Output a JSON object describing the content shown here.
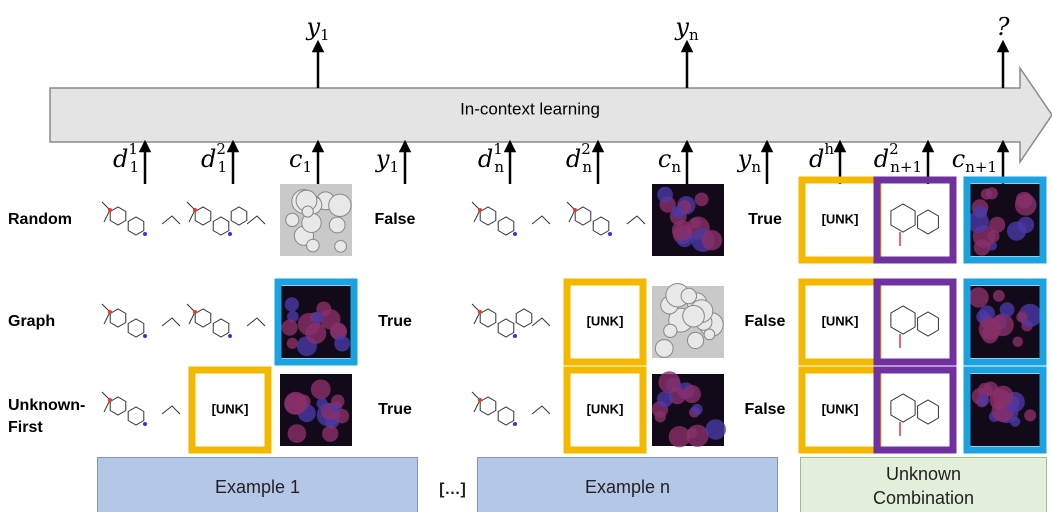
{
  "top_labels": [
    {
      "base": "y",
      "sub": "1"
    },
    {
      "base": "y",
      "sub": "n"
    },
    {
      "base": "?"
    }
  ],
  "banner": "In-context learning",
  "inputs": [
    {
      "base": "d",
      "sub": "1",
      "sup": "1"
    },
    {
      "base": "d",
      "sub": "1",
      "sup": "2"
    },
    {
      "base": "c",
      "sub": "1"
    },
    {
      "base": "y",
      "sub": "1"
    },
    {
      "base": "d",
      "sub": "n",
      "sup": "1"
    },
    {
      "base": "d",
      "sub": "n",
      "sup": "2"
    },
    {
      "base": "c",
      "sub": "n"
    },
    {
      "base": "y",
      "sub": "n"
    },
    {
      "base": "d",
      "sup": "h"
    },
    {
      "base": "d",
      "sub": "n+1",
      "sup": "2"
    },
    {
      "base": "c",
      "sub": "n+1"
    }
  ],
  "rows": [
    {
      "label": "Random",
      "answers": [
        "False",
        "True"
      ],
      "unk": [
        "[UNK]"
      ]
    },
    {
      "label": "Graph",
      "answers": [
        "True",
        "False"
      ],
      "unk": [
        "[UNK]",
        "[UNK]"
      ]
    },
    {
      "label": "Unknown-First",
      "answers": [
        "True",
        "False"
      ],
      "unk": [
        "[UNK]",
        "[UNK]",
        "[UNK]"
      ]
    }
  ],
  "footer": [
    "Example 1",
    "[…]",
    "Example n",
    "Unknown Combination"
  ]
}
